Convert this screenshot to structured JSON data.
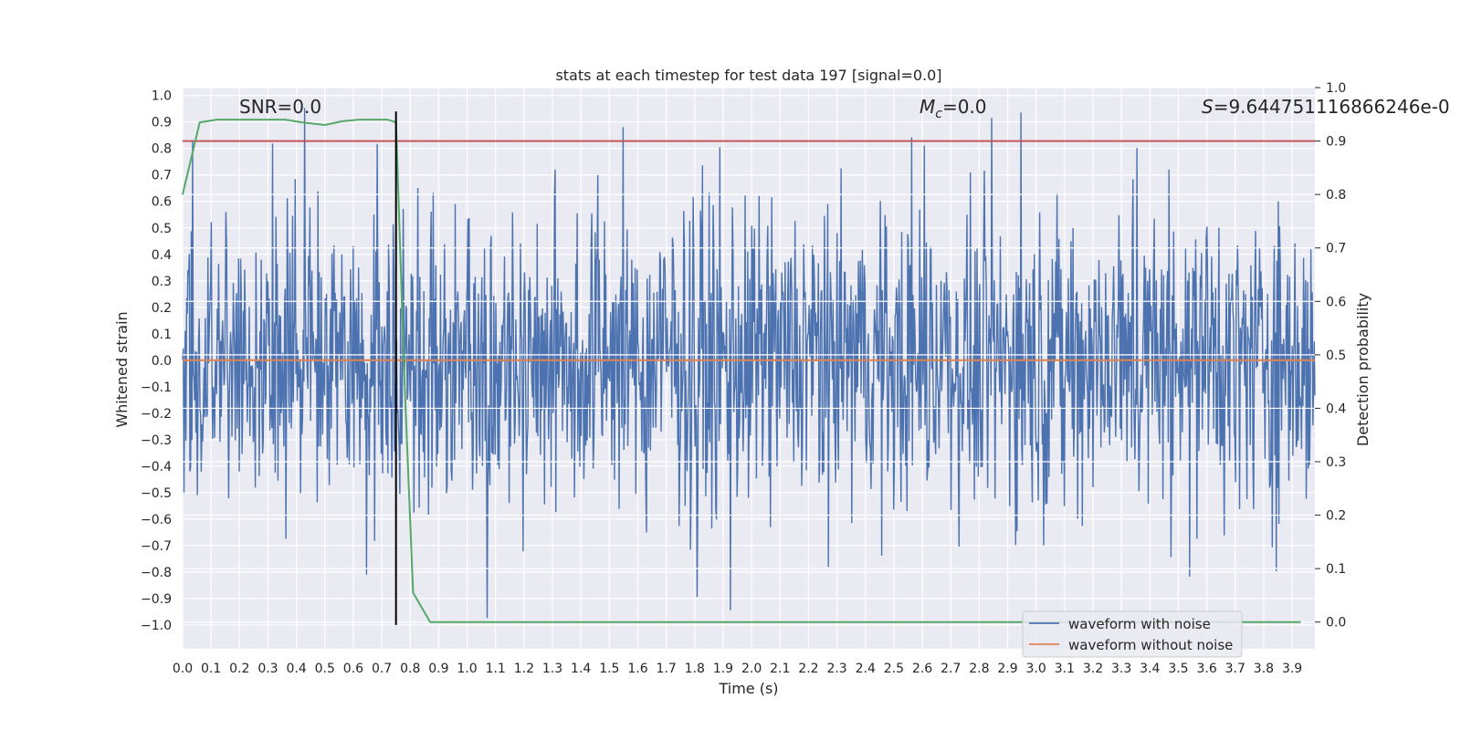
{
  "chart_data": {
    "type": "line",
    "title": "stats at each timestep for test data 197 [signal=0.0]",
    "xlabel": "Time (s)",
    "ylabel": "Whitened strain",
    "y2label": "Detection probability",
    "xlim": [
      0.0,
      3.98
    ],
    "ylim": [
      -1.09,
      1.03
    ],
    "y2lim": [
      -0.05,
      1.0
    ],
    "x_ticks": [
      "0.0",
      "0.1",
      "0.2",
      "0.3",
      "0.4",
      "0.5",
      "0.6",
      "0.7",
      "0.8",
      "0.9",
      "1.0",
      "1.1",
      "1.2",
      "1.3",
      "1.4",
      "1.5",
      "1.6",
      "1.7",
      "1.8",
      "1.9",
      "2.0",
      "2.1",
      "2.2",
      "2.3",
      "2.4",
      "2.5",
      "2.6",
      "2.7",
      "2.8",
      "2.9",
      "3.0",
      "3.1",
      "3.2",
      "3.3",
      "3.4",
      "3.5",
      "3.6",
      "3.7",
      "3.8",
      "3.9"
    ],
    "y_ticks": [
      "1.0",
      "0.9",
      "0.8",
      "0.7",
      "0.6",
      "0.5",
      "0.4",
      "0.3",
      "0.2",
      "0.1",
      "0.0",
      "-0.1",
      "-0.2",
      "-0.3",
      "-0.4",
      "-0.5",
      "-0.6",
      "-0.7",
      "-0.8",
      "-0.9",
      "-1.0"
    ],
    "y2_ticks": [
      "1.0",
      "0.9",
      "0.8",
      "0.7",
      "0.6",
      "0.5",
      "0.4",
      "0.3",
      "0.2",
      "0.1",
      "0.0"
    ],
    "annotations": {
      "snr": "SNR=0.0",
      "mc_symbol": "M",
      "mc_sub": "c",
      "mc_value": "=0.0",
      "s_symbol": "S",
      "s_value": "=9.644751116866246e-0"
    },
    "legend": {
      "position": "lower-right",
      "entries": [
        "waveform with noise",
        "waveform without noise"
      ]
    },
    "series_meta": [
      {
        "name": "waveform with noise",
        "color": "#4c72b0",
        "axis": "left",
        "amplitude_range": [
          -1.0,
          0.98
        ]
      },
      {
        "name": "waveform without noise",
        "color": "#dd8452",
        "axis": "left",
        "value": 0.0
      },
      {
        "name": "detection probability",
        "color": "#55a868",
        "axis": "right"
      },
      {
        "name": "threshold",
        "color": "#c44e52",
        "axis": "right",
        "value": 0.9
      },
      {
        "name": "marker",
        "color": "#000000",
        "axis": "left",
        "x": 0.75,
        "y_range": [
          -1.0,
          0.94
        ]
      }
    ],
    "detection_probability": {
      "x": [
        0.0,
        0.06,
        0.12,
        0.18,
        0.24,
        0.3,
        0.36,
        0.42,
        0.5,
        0.56,
        0.62,
        0.68,
        0.72,
        0.75,
        0.78,
        0.81,
        0.87,
        0.93,
        3.93
      ],
      "y": [
        0.8,
        0.935,
        0.94,
        0.94,
        0.94,
        0.94,
        0.94,
        0.935,
        0.93,
        0.937,
        0.94,
        0.94,
        0.94,
        0.935,
        0.45,
        0.055,
        0.0,
        0.0,
        0.0
      ]
    }
  }
}
